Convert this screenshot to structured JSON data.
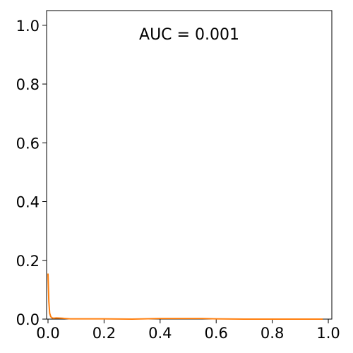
{
  "chart_data": {
    "type": "line",
    "title": "",
    "xlabel": "",
    "ylabel": "",
    "xlim": [
      0.0,
      1.0
    ],
    "ylim": [
      0.0,
      1.0
    ],
    "x_ticks": [
      {
        "value": 0.0,
        "label": "0.0"
      },
      {
        "value": 0.2,
        "label": "0.2"
      },
      {
        "value": 0.4,
        "label": "0.4"
      },
      {
        "value": 0.6,
        "label": "0.6"
      },
      {
        "value": 0.8,
        "label": "0.8"
      },
      {
        "value": 1.0,
        "label": "1.0"
      }
    ],
    "y_ticks": [
      {
        "value": 0.0,
        "label": "0.0"
      },
      {
        "value": 0.2,
        "label": "0.2"
      },
      {
        "value": 0.4,
        "label": "0.4"
      },
      {
        "value": 0.6,
        "label": "0.6"
      },
      {
        "value": 0.8,
        "label": "0.8"
      },
      {
        "value": 1.0,
        "label": "1.0"
      }
    ],
    "grid": false,
    "annotation": "AUC = 0.001",
    "series": [
      {
        "color": "#ff7f0e",
        "x": [
          0.0,
          0.003,
          0.006,
          0.01,
          0.015,
          0.02,
          0.03,
          0.05,
          0.08,
          0.12,
          0.2,
          0.3,
          0.4,
          0.5,
          0.55,
          0.6,
          0.7,
          0.8,
          0.9,
          0.98
        ],
        "y": [
          0.155,
          0.06,
          0.02,
          0.008,
          0.004,
          0.003,
          0.004,
          0.003,
          0.001,
          0.001,
          0.001,
          0.0,
          0.002,
          0.002,
          0.002,
          0.001,
          0.0,
          0.0,
          0.0,
          0.0
        ]
      }
    ]
  }
}
